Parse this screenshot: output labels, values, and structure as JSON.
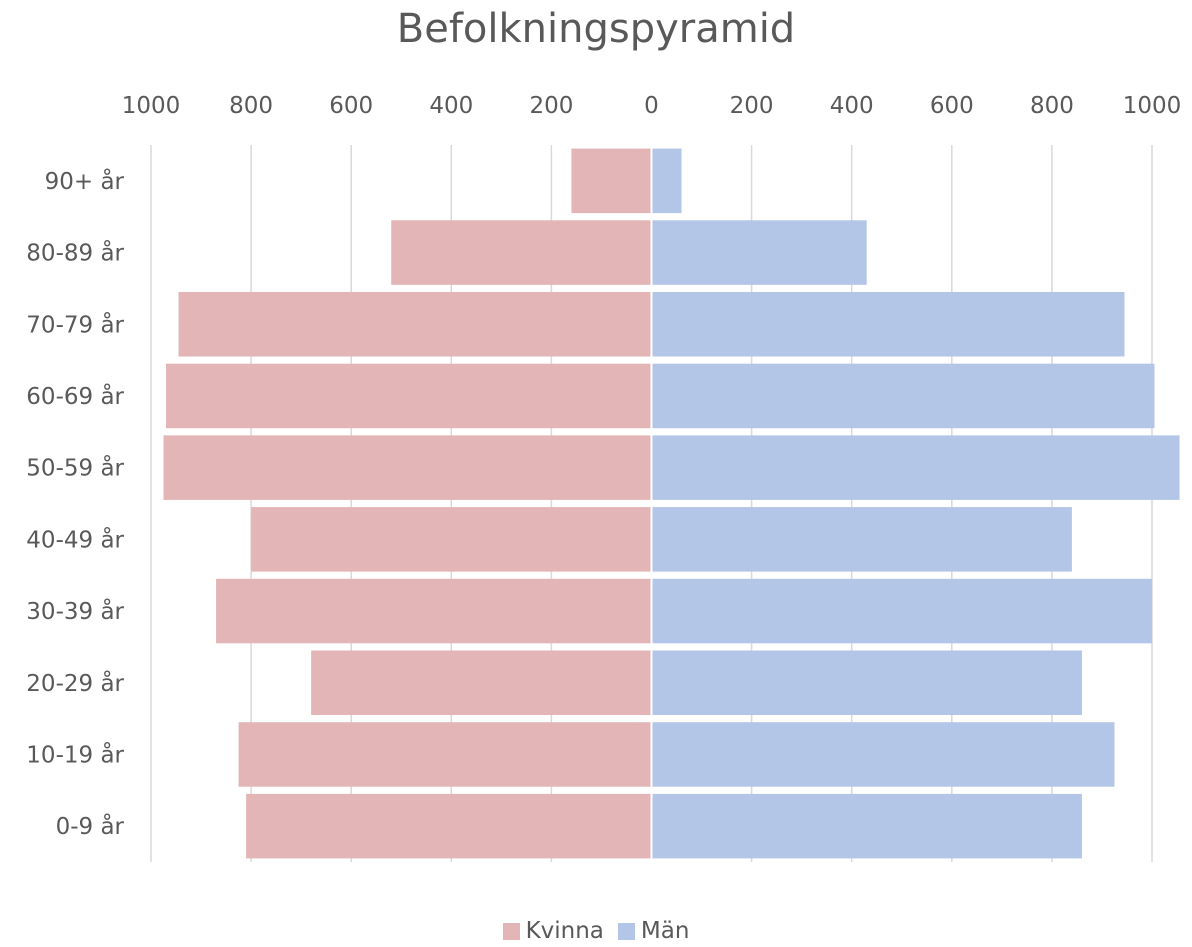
{
  "chart_data": {
    "type": "bar",
    "orientation": "horizontal",
    "title": "Befolkningspyramid",
    "categories": [
      "90+ år",
      "80-89 år",
      "70-79 år",
      "60-69 år",
      "50-59 år",
      "40-49 år",
      "30-39 år",
      "20-29 år",
      "10-19 år",
      "0-9 år"
    ],
    "series": [
      {
        "name": "Kvinna",
        "side": "left",
        "color": "#e3b5b6",
        "values": [
          160,
          520,
          945,
          970,
          975,
          800,
          870,
          680,
          825,
          810
        ]
      },
      {
        "name": "Män",
        "side": "right",
        "color": "#b3c6e8",
        "values": [
          60,
          430,
          945,
          1005,
          1055,
          840,
          1000,
          860,
          925,
          860
        ]
      }
    ],
    "xlim": [
      -1000,
      1000
    ],
    "xticks": [
      -1000,
      -800,
      -600,
      -400,
      -200,
      0,
      200,
      400,
      600,
      800,
      1000
    ],
    "xtick_labels": [
      "1000",
      "800",
      "600",
      "400",
      "200",
      "0",
      "200",
      "400",
      "600",
      "800",
      "1000"
    ],
    "xaxis_position": "top",
    "grid": true,
    "legend_position": "bottom"
  }
}
